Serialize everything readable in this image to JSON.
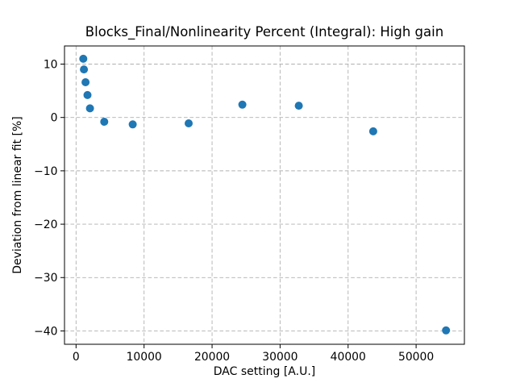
{
  "window": {
    "background": "#ffffff"
  },
  "chart_data": {
    "type": "scatter",
    "title": "Blocks_Final/Nonlinearity Percent (Integral): High gain",
    "xlabel": "DAC setting [A.U.]",
    "ylabel": "Deviation from linear fit [%]",
    "series": [
      {
        "name": "nonlinearity-points",
        "marker": "circle",
        "color": "#1f77b4",
        "marker_diameter_px": 10,
        "x": [
          1060,
          1160,
          1390,
          1680,
          2050,
          4150,
          8330,
          16560,
          24450,
          32750,
          43690,
          54400
        ],
        "y": [
          11.0,
          9.0,
          6.6,
          4.2,
          1.7,
          -0.8,
          -1.3,
          -1.1,
          2.4,
          2.2,
          -2.6,
          -39.9
        ]
      }
    ],
    "xlim": [
      -1700,
      57100
    ],
    "ylim": [
      -42.5,
      13.4
    ],
    "xticks": {
      "values": [
        0,
        10000,
        20000,
        30000,
        40000,
        50000
      ],
      "labels": [
        "0",
        "10000",
        "20000",
        "30000",
        "40000",
        "50000"
      ]
    },
    "yticks": {
      "values": [
        10,
        0,
        -10,
        -20,
        -30,
        -40
      ],
      "labels": [
        "10",
        "0",
        "−10",
        "−20",
        "−30",
        "−40"
      ]
    },
    "grid": {
      "visible": true,
      "style": "dashed",
      "color": "#b0b0b0"
    },
    "legend": null,
    "spine_color": "#000000",
    "tick_color": "#000000",
    "plot_background": "#ffffff"
  }
}
